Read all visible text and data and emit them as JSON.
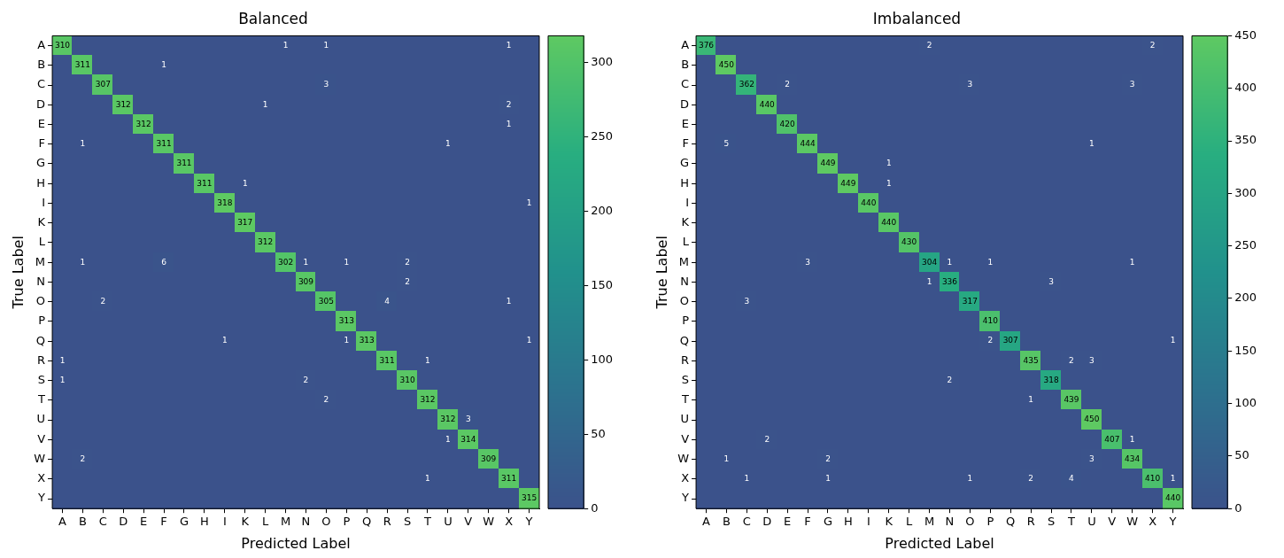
{
  "chart_data": [
    {
      "type": "heatmap",
      "title": "Balanced",
      "xlabel": "Predicted Label",
      "ylabel": "True Label",
      "categories": [
        "A",
        "B",
        "C",
        "D",
        "E",
        "F",
        "G",
        "H",
        "I",
        "K",
        "L",
        "M",
        "N",
        "O",
        "P",
        "Q",
        "R",
        "S",
        "T",
        "U",
        "V",
        "W",
        "X",
        "Y"
      ],
      "y_categories": [
        "A",
        "B",
        "C",
        "D",
        "E",
        "F",
        "G",
        "H",
        "I",
        "K",
        "L",
        "M",
        "N",
        "O",
        "P",
        "Q",
        "R",
        "S",
        "T",
        "U",
        "V",
        "W",
        "X",
        "Y"
      ],
      "cells": [
        [
          310,
          0,
          0,
          0,
          0,
          0,
          0,
          0,
          0,
          0,
          0,
          1,
          0,
          1,
          0,
          0,
          0,
          0,
          0,
          0,
          0,
          0,
          1,
          0
        ],
        [
          0,
          311,
          0,
          0,
          0,
          1,
          0,
          0,
          0,
          0,
          0,
          0,
          0,
          0,
          0,
          0,
          0,
          0,
          0,
          0,
          0,
          0,
          0,
          0
        ],
        [
          0,
          0,
          307,
          0,
          0,
          0,
          0,
          0,
          0,
          0,
          0,
          0,
          0,
          3,
          0,
          0,
          0,
          0,
          0,
          0,
          0,
          0,
          0,
          0
        ],
        [
          0,
          0,
          0,
          312,
          0,
          0,
          0,
          0,
          0,
          0,
          1,
          0,
          0,
          0,
          0,
          0,
          0,
          0,
          0,
          0,
          0,
          0,
          2,
          0
        ],
        [
          0,
          0,
          0,
          0,
          312,
          0,
          0,
          0,
          0,
          0,
          0,
          0,
          0,
          0,
          0,
          0,
          0,
          0,
          0,
          0,
          0,
          0,
          1,
          0
        ],
        [
          0,
          1,
          0,
          0,
          0,
          311,
          0,
          0,
          0,
          0,
          0,
          0,
          0,
          0,
          0,
          0,
          0,
          0,
          0,
          1,
          0,
          0,
          0,
          0
        ],
        [
          0,
          0,
          0,
          0,
          0,
          0,
          311,
          0,
          0,
          0,
          0,
          0,
          0,
          0,
          0,
          0,
          0,
          0,
          0,
          0,
          0,
          0,
          0,
          0
        ],
        [
          0,
          0,
          0,
          0,
          0,
          0,
          0,
          311,
          0,
          1,
          0,
          0,
          0,
          0,
          0,
          0,
          0,
          0,
          0,
          0,
          0,
          0,
          0,
          0
        ],
        [
          0,
          0,
          0,
          0,
          0,
          0,
          0,
          0,
          318,
          0,
          0,
          0,
          0,
          0,
          0,
          0,
          0,
          0,
          0,
          0,
          0,
          0,
          0,
          1
        ],
        [
          0,
          0,
          0,
          0,
          0,
          0,
          0,
          0,
          0,
          317,
          0,
          0,
          0,
          0,
          0,
          0,
          0,
          0,
          0,
          0,
          0,
          0,
          0,
          0
        ],
        [
          0,
          0,
          0,
          0,
          0,
          0,
          0,
          0,
          0,
          0,
          312,
          0,
          0,
          0,
          0,
          0,
          0,
          0,
          0,
          0,
          0,
          0,
          0,
          0
        ],
        [
          0,
          1,
          0,
          0,
          0,
          6,
          0,
          0,
          0,
          0,
          0,
          302,
          1,
          0,
          1,
          0,
          0,
          2,
          0,
          0,
          0,
          0,
          0,
          0
        ],
        [
          0,
          0,
          0,
          0,
          0,
          0,
          0,
          0,
          0,
          0,
          0,
          0,
          309,
          0,
          0,
          0,
          0,
          2,
          0,
          0,
          0,
          0,
          0,
          0
        ],
        [
          0,
          0,
          2,
          0,
          0,
          0,
          0,
          0,
          0,
          0,
          0,
          0,
          0,
          305,
          0,
          0,
          4,
          0,
          0,
          0,
          0,
          0,
          1,
          0
        ],
        [
          0,
          0,
          0,
          0,
          0,
          0,
          0,
          0,
          0,
          0,
          0,
          0,
          0,
          0,
          313,
          0,
          0,
          0,
          0,
          0,
          0,
          0,
          0,
          0
        ],
        [
          0,
          0,
          0,
          0,
          0,
          0,
          0,
          0,
          1,
          0,
          0,
          0,
          0,
          0,
          1,
          313,
          0,
          0,
          0,
          0,
          0,
          0,
          0,
          1
        ],
        [
          1,
          0,
          0,
          0,
          0,
          0,
          0,
          0,
          0,
          0,
          0,
          0,
          0,
          0,
          0,
          0,
          311,
          0,
          1,
          0,
          0,
          0,
          0,
          0
        ],
        [
          1,
          0,
          0,
          0,
          0,
          0,
          0,
          0,
          0,
          0,
          0,
          0,
          2,
          0,
          0,
          0,
          0,
          310,
          0,
          0,
          0,
          0,
          0,
          0
        ],
        [
          0,
          0,
          0,
          0,
          0,
          0,
          0,
          0,
          0,
          0,
          0,
          0,
          0,
          2,
          0,
          0,
          0,
          0,
          312,
          0,
          0,
          0,
          0,
          0
        ],
        [
          0,
          0,
          0,
          0,
          0,
          0,
          0,
          0,
          0,
          0,
          0,
          0,
          0,
          0,
          0,
          0,
          0,
          0,
          0,
          312,
          3,
          0,
          0,
          0
        ],
        [
          0,
          0,
          0,
          0,
          0,
          0,
          0,
          0,
          0,
          0,
          0,
          0,
          0,
          0,
          0,
          0,
          0,
          0,
          0,
          1,
          314,
          0,
          0,
          0
        ],
        [
          0,
          2,
          0,
          0,
          0,
          0,
          0,
          0,
          0,
          0,
          0,
          0,
          0,
          0,
          0,
          0,
          0,
          0,
          0,
          0,
          0,
          309,
          0,
          0
        ],
        [
          0,
          0,
          0,
          0,
          0,
          0,
          0,
          0,
          0,
          0,
          0,
          0,
          0,
          0,
          0,
          0,
          0,
          0,
          1,
          0,
          0,
          0,
          311,
          0
        ],
        [
          0,
          0,
          0,
          0,
          0,
          0,
          0,
          0,
          0,
          0,
          0,
          0,
          0,
          0,
          0,
          0,
          0,
          0,
          0,
          0,
          0,
          0,
          0,
          315
        ]
      ],
      "cell_labels": [
        [
          "310",
          null,
          null,
          null,
          null,
          null,
          null,
          null,
          null,
          null,
          null,
          "1",
          null,
          "1",
          null,
          null,
          null,
          null,
          null,
          null,
          null,
          null,
          "1",
          null
        ],
        [
          null,
          "311",
          null,
          null,
          null,
          "1",
          null,
          null,
          null,
          null,
          null,
          null,
          null,
          null,
          null,
          null,
          null,
          null,
          null,
          null,
          null,
          null,
          null,
          null
        ],
        [
          null,
          null,
          "307",
          null,
          null,
          null,
          null,
          null,
          null,
          null,
          null,
          null,
          null,
          "3",
          null,
          null,
          null,
          null,
          null,
          null,
          null,
          null,
          null,
          null
        ],
        [
          null,
          null,
          null,
          "312",
          null,
          null,
          null,
          null,
          null,
          null,
          "1",
          null,
          null,
          null,
          null,
          null,
          null,
          null,
          null,
          null,
          null,
          null,
          "2",
          null
        ],
        [
          null,
          null,
          null,
          null,
          "312",
          null,
          null,
          null,
          null,
          null,
          null,
          null,
          null,
          null,
          null,
          null,
          null,
          null,
          null,
          null,
          null,
          null,
          "1",
          null
        ],
        [
          null,
          "1",
          null,
          null,
          null,
          "311",
          null,
          null,
          null,
          null,
          null,
          null,
          null,
          null,
          null,
          null,
          null,
          null,
          null,
          "1",
          null,
          null,
          null,
          null
        ],
        [
          null,
          null,
          null,
          null,
          null,
          null,
          "311",
          null,
          null,
          null,
          null,
          null,
          null,
          null,
          null,
          null,
          null,
          null,
          null,
          null,
          null,
          null,
          null,
          null
        ],
        [
          null,
          null,
          null,
          null,
          null,
          null,
          null,
          "311",
          null,
          "1",
          null,
          null,
          null,
          null,
          null,
          null,
          null,
          null,
          null,
          null,
          null,
          null,
          null,
          null
        ],
        [
          null,
          null,
          null,
          null,
          null,
          null,
          null,
          null,
          "318",
          null,
          null,
          null,
          null,
          null,
          null,
          null,
          null,
          null,
          null,
          null,
          null,
          null,
          null,
          "1"
        ],
        [
          null,
          null,
          null,
          null,
          null,
          null,
          null,
          null,
          null,
          "317",
          null,
          null,
          null,
          null,
          null,
          null,
          null,
          null,
          null,
          null,
          null,
          null,
          null,
          null
        ],
        [
          null,
          null,
          null,
          null,
          null,
          null,
          null,
          null,
          null,
          null,
          "312",
          null,
          null,
          null,
          null,
          null,
          null,
          null,
          null,
          null,
          null,
          null,
          null,
          null
        ],
        [
          null,
          "1",
          null,
          null,
          null,
          "6",
          null,
          null,
          null,
          null,
          null,
          "302",
          "1",
          null,
          "1",
          null,
          null,
          "2",
          null,
          null,
          null,
          null,
          null,
          null
        ],
        [
          null,
          null,
          null,
          null,
          null,
          null,
          null,
          null,
          null,
          null,
          null,
          null,
          "309",
          null,
          null,
          null,
          null,
          "2",
          null,
          null,
          null,
          null,
          null,
          null
        ],
        [
          null,
          null,
          "2",
          null,
          null,
          null,
          null,
          null,
          null,
          null,
          null,
          null,
          null,
          "305",
          null,
          null,
          "4",
          null,
          null,
          null,
          null,
          null,
          "1",
          null
        ],
        [
          null,
          null,
          null,
          null,
          null,
          null,
          null,
          null,
          null,
          null,
          null,
          null,
          null,
          null,
          "313",
          null,
          null,
          null,
          null,
          null,
          null,
          null,
          null,
          null
        ],
        [
          null,
          null,
          null,
          null,
          null,
          null,
          null,
          null,
          "1",
          null,
          null,
          null,
          null,
          null,
          "1",
          "313",
          null,
          null,
          null,
          null,
          null,
          null,
          null,
          "1"
        ],
        [
          "1",
          null,
          null,
          null,
          null,
          null,
          null,
          null,
          null,
          null,
          null,
          null,
          null,
          null,
          null,
          null,
          "311",
          null,
          "1",
          null,
          null,
          null,
          null,
          null
        ],
        [
          "1",
          null,
          null,
          null,
          null,
          null,
          null,
          null,
          null,
          null,
          null,
          null,
          "2",
          null,
          null,
          null,
          null,
          "310",
          null,
          null,
          null,
          null,
          null,
          null
        ],
        [
          null,
          null,
          null,
          null,
          null,
          null,
          null,
          null,
          null,
          null,
          null,
          null,
          null,
          "2",
          null,
          null,
          null,
          null,
          "312",
          null,
          null,
          null,
          null,
          null
        ],
        [
          null,
          null,
          null,
          null,
          null,
          null,
          null,
          null,
          null,
          null,
          null,
          null,
          null,
          null,
          null,
          null,
          null,
          null,
          null,
          "312",
          "3",
          null,
          null,
          null
        ],
        [
          null,
          null,
          null,
          null,
          null,
          null,
          null,
          null,
          null,
          null,
          null,
          null,
          null,
          null,
          null,
          null,
          null,
          null,
          null,
          "1",
          "314",
          null,
          null,
          null
        ],
        [
          null,
          "2",
          null,
          null,
          null,
          null,
          null,
          null,
          null,
          null,
          null,
          null,
          null,
          null,
          null,
          null,
          null,
          null,
          null,
          null,
          null,
          "309",
          null,
          null
        ],
        [
          null,
          null,
          null,
          null,
          null,
          null,
          null,
          null,
          null,
          null,
          null,
          null,
          null,
          null,
          null,
          null,
          null,
          null,
          "1",
          null,
          null,
          null,
          "311",
          null
        ],
        [
          null,
          null,
          null,
          null,
          null,
          null,
          null,
          null,
          null,
          null,
          null,
          null,
          null,
          null,
          null,
          null,
          null,
          null,
          null,
          null,
          null,
          null,
          null,
          "315"
        ]
      ],
      "clim": [
        0,
        318
      ],
      "cticks": [
        0,
        50,
        100,
        150,
        200,
        250,
        300
      ]
    },
    {
      "type": "heatmap",
      "title": "Imbalanced",
      "xlabel": "Predicted Label",
      "ylabel": "True Label",
      "categories": [
        "A",
        "B",
        "C",
        "D",
        "E",
        "F",
        "G",
        "H",
        "I",
        "K",
        "L",
        "M",
        "N",
        "O",
        "P",
        "Q",
        "R",
        "S",
        "T",
        "U",
        "V",
        "W",
        "X",
        "Y"
      ],
      "y_categories": [
        "A",
        "B",
        "C",
        "D",
        "E",
        "F",
        "G",
        "H",
        "I",
        "K",
        "L",
        "M",
        "N",
        "O",
        "P",
        "Q",
        "R",
        "S",
        "T",
        "U",
        "V",
        "W",
        "X",
        "Y"
      ],
      "cells": [
        [
          376,
          0,
          0,
          0,
          0,
          0,
          0,
          0,
          0,
          0,
          0,
          2,
          0,
          0,
          0,
          0,
          0,
          0,
          0,
          0,
          0,
          0,
          2,
          0
        ],
        [
          0,
          450,
          0,
          0,
          0,
          0,
          0,
          0,
          0,
          0,
          0,
          0,
          0,
          0,
          0,
          0,
          0,
          0,
          0,
          0,
          0,
          0,
          0,
          0
        ],
        [
          0,
          0,
          362,
          0,
          2,
          0,
          0,
          0,
          0,
          0,
          0,
          0,
          0,
          3,
          0,
          0,
          0,
          0,
          0,
          0,
          0,
          3,
          0,
          0
        ],
        [
          0,
          0,
          0,
          440,
          0,
          0,
          0,
          0,
          0,
          0,
          0,
          0,
          0,
          0,
          0,
          0,
          0,
          0,
          0,
          0,
          0,
          0,
          0,
          0
        ],
        [
          0,
          0,
          0,
          0,
          420,
          0,
          0,
          0,
          0,
          0,
          0,
          0,
          0,
          0,
          0,
          0,
          0,
          0,
          0,
          0,
          0,
          0,
          0,
          0
        ],
        [
          0,
          5,
          0,
          0,
          0,
          444,
          0,
          0,
          0,
          0,
          0,
          0,
          0,
          0,
          0,
          0,
          0,
          0,
          0,
          1,
          0,
          0,
          0,
          0
        ],
        [
          0,
          0,
          0,
          0,
          0,
          0,
          449,
          0,
          0,
          1,
          0,
          0,
          0,
          0,
          0,
          0,
          0,
          0,
          0,
          0,
          0,
          0,
          0,
          0
        ],
        [
          0,
          0,
          0,
          0,
          0,
          0,
          0,
          449,
          0,
          1,
          0,
          0,
          0,
          0,
          0,
          0,
          0,
          0,
          0,
          0,
          0,
          0,
          0,
          0
        ],
        [
          0,
          0,
          0,
          0,
          0,
          0,
          0,
          0,
          440,
          0,
          0,
          0,
          0,
          0,
          0,
          0,
          0,
          0,
          0,
          0,
          0,
          0,
          0,
          0
        ],
        [
          0,
          0,
          0,
          0,
          0,
          0,
          0,
          0,
          0,
          440,
          0,
          0,
          0,
          0,
          0,
          0,
          0,
          0,
          0,
          0,
          0,
          0,
          0,
          0
        ],
        [
          0,
          0,
          0,
          0,
          0,
          0,
          0,
          0,
          0,
          0,
          430,
          0,
          0,
          0,
          0,
          0,
          0,
          0,
          0,
          0,
          0,
          0,
          0,
          0
        ],
        [
          0,
          0,
          0,
          0,
          0,
          3,
          0,
          0,
          0,
          0,
          0,
          304,
          1,
          0,
          1,
          0,
          0,
          0,
          0,
          0,
          0,
          1,
          0,
          0
        ],
        [
          0,
          0,
          0,
          0,
          0,
          0,
          0,
          0,
          0,
          0,
          0,
          1,
          336,
          0,
          0,
          0,
          0,
          3,
          0,
          0,
          0,
          0,
          0,
          0
        ],
        [
          0,
          0,
          3,
          0,
          0,
          0,
          0,
          0,
          0,
          0,
          0,
          0,
          0,
          317,
          0,
          0,
          0,
          0,
          0,
          0,
          0,
          0,
          0,
          0
        ],
        [
          0,
          0,
          0,
          0,
          0,
          0,
          0,
          0,
          0,
          0,
          0,
          0,
          0,
          0,
          410,
          0,
          0,
          0,
          0,
          0,
          0,
          0,
          0,
          0
        ],
        [
          0,
          0,
          0,
          0,
          0,
          0,
          0,
          0,
          0,
          0,
          0,
          0,
          0,
          0,
          2,
          307,
          0,
          0,
          0,
          0,
          0,
          0,
          0,
          1
        ],
        [
          0,
          0,
          0,
          0,
          0,
          0,
          0,
          0,
          0,
          0,
          0,
          0,
          0,
          0,
          0,
          0,
          435,
          0,
          2,
          3,
          0,
          0,
          0,
          0
        ],
        [
          0,
          0,
          0,
          0,
          0,
          0,
          0,
          0,
          0,
          0,
          0,
          0,
          2,
          0,
          0,
          0,
          0,
          318,
          0,
          0,
          0,
          0,
          0,
          0
        ],
        [
          0,
          0,
          0,
          0,
          0,
          0,
          0,
          0,
          0,
          0,
          0,
          0,
          0,
          0,
          0,
          0,
          1,
          0,
          439,
          0,
          0,
          0,
          0,
          0
        ],
        [
          0,
          0,
          0,
          0,
          0,
          0,
          0,
          0,
          0,
          0,
          0,
          0,
          0,
          0,
          0,
          0,
          0,
          0,
          0,
          450,
          0,
          0,
          0,
          0
        ],
        [
          0,
          0,
          0,
          2,
          0,
          0,
          0,
          0,
          0,
          0,
          0,
          0,
          0,
          0,
          0,
          0,
          0,
          0,
          0,
          0,
          407,
          1,
          0,
          0
        ],
        [
          0,
          1,
          0,
          0,
          0,
          0,
          2,
          0,
          0,
          0,
          0,
          0,
          0,
          0,
          0,
          0,
          0,
          0,
          0,
          3,
          0,
          434,
          0,
          0
        ],
        [
          0,
          0,
          1,
          0,
          0,
          0,
          1,
          0,
          0,
          0,
          0,
          0,
          0,
          1,
          0,
          0,
          2,
          0,
          4,
          0,
          0,
          0,
          410,
          1
        ],
        [
          0,
          0,
          0,
          0,
          0,
          0,
          0,
          0,
          0,
          0,
          0,
          0,
          0,
          0,
          0,
          0,
          0,
          0,
          0,
          0,
          0,
          0,
          0,
          440
        ]
      ],
      "cell_labels": [
        [
          "376",
          null,
          null,
          null,
          null,
          null,
          null,
          null,
          null,
          null,
          null,
          "2",
          null,
          null,
          null,
          null,
          null,
          null,
          null,
          null,
          null,
          null,
          "2",
          null
        ],
        [
          null,
          "450",
          null,
          null,
          null,
          null,
          null,
          null,
          null,
          null,
          null,
          null,
          null,
          null,
          null,
          null,
          null,
          null,
          null,
          null,
          null,
          null,
          null,
          null
        ],
        [
          null,
          null,
          "362",
          null,
          "2",
          null,
          null,
          null,
          null,
          null,
          null,
          null,
          null,
          "3",
          null,
          null,
          null,
          null,
          null,
          null,
          null,
          "3",
          null,
          null
        ],
        [
          null,
          null,
          null,
          "440",
          null,
          null,
          null,
          null,
          null,
          null,
          null,
          null,
          null,
          null,
          null,
          null,
          null,
          null,
          null,
          null,
          null,
          null,
          null,
          null
        ],
        [
          null,
          null,
          null,
          null,
          "420",
          null,
          null,
          null,
          null,
          null,
          null,
          null,
          null,
          null,
          null,
          null,
          null,
          null,
          null,
          null,
          null,
          null,
          null,
          null
        ],
        [
          null,
          "5",
          null,
          null,
          null,
          "444",
          null,
          null,
          null,
          null,
          null,
          null,
          null,
          null,
          null,
          null,
          null,
          null,
          null,
          "1",
          null,
          null,
          null,
          null
        ],
        [
          null,
          null,
          null,
          null,
          null,
          null,
          "449",
          null,
          null,
          "1",
          null,
          null,
          null,
          null,
          null,
          null,
          null,
          null,
          null,
          null,
          null,
          null,
          null,
          null
        ],
        [
          null,
          null,
          null,
          null,
          null,
          null,
          null,
          "449",
          null,
          "1",
          null,
          null,
          null,
          null,
          null,
          null,
          null,
          null,
          null,
          null,
          null,
          null,
          null,
          null
        ],
        [
          null,
          null,
          null,
          null,
          null,
          null,
          null,
          null,
          "440",
          null,
          null,
          null,
          null,
          null,
          null,
          null,
          null,
          null,
          null,
          null,
          null,
          null,
          null,
          null
        ],
        [
          null,
          null,
          null,
          null,
          null,
          null,
          null,
          null,
          null,
          "440",
          null,
          null,
          null,
          null,
          null,
          null,
          null,
          null,
          null,
          null,
          null,
          null,
          null,
          null
        ],
        [
          null,
          null,
          null,
          null,
          null,
          null,
          null,
          null,
          null,
          null,
          "430",
          null,
          null,
          null,
          null,
          null,
          null,
          null,
          null,
          null,
          null,
          null,
          null,
          null
        ],
        [
          null,
          null,
          null,
          null,
          null,
          "3",
          null,
          null,
          null,
          null,
          null,
          "304",
          "1",
          null,
          "1",
          null,
          null,
          null,
          null,
          null,
          null,
          "1",
          null,
          null
        ],
        [
          null,
          null,
          null,
          null,
          null,
          null,
          null,
          null,
          null,
          null,
          null,
          "1",
          "336",
          null,
          null,
          null,
          null,
          "3",
          null,
          null,
          null,
          null,
          null,
          null
        ],
        [
          null,
          null,
          "3",
          null,
          null,
          null,
          null,
          null,
          null,
          null,
          null,
          null,
          null,
          "317",
          null,
          null,
          null,
          null,
          null,
          null,
          null,
          null,
          null,
          null
        ],
        [
          null,
          null,
          null,
          null,
          null,
          null,
          null,
          null,
          null,
          null,
          null,
          null,
          null,
          null,
          "410",
          null,
          null,
          null,
          null,
          null,
          null,
          null,
          null,
          null
        ],
        [
          null,
          null,
          null,
          null,
          null,
          null,
          null,
          null,
          null,
          null,
          null,
          null,
          null,
          null,
          "2",
          "307",
          null,
          null,
          null,
          null,
          null,
          null,
          null,
          "1"
        ],
        [
          null,
          null,
          null,
          null,
          null,
          null,
          null,
          null,
          null,
          null,
          null,
          null,
          null,
          null,
          null,
          null,
          "435",
          null,
          "2",
          "3",
          null,
          null,
          null,
          null
        ],
        [
          null,
          null,
          null,
          null,
          null,
          null,
          null,
          null,
          null,
          null,
          null,
          null,
          "2",
          null,
          null,
          null,
          null,
          "318",
          null,
          null,
          null,
          null,
          null,
          null
        ],
        [
          null,
          null,
          null,
          null,
          null,
          null,
          null,
          null,
          null,
          null,
          null,
          null,
          null,
          null,
          null,
          null,
          "1",
          null,
          "439",
          null,
          null,
          null,
          null,
          null
        ],
        [
          null,
          null,
          null,
          null,
          null,
          null,
          null,
          null,
          null,
          null,
          null,
          null,
          null,
          null,
          null,
          null,
          null,
          null,
          null,
          "450",
          null,
          null,
          null,
          null
        ],
        [
          null,
          null,
          null,
          "2",
          null,
          null,
          null,
          null,
          null,
          null,
          null,
          null,
          null,
          null,
          null,
          null,
          null,
          null,
          null,
          null,
          "407",
          "1",
          null,
          null
        ],
        [
          null,
          "1",
          null,
          null,
          null,
          null,
          "2",
          null,
          null,
          null,
          null,
          null,
          null,
          null,
          null,
          null,
          null,
          null,
          null,
          "3",
          null,
          "434",
          null,
          null
        ],
        [
          null,
          null,
          "1",
          null,
          null,
          null,
          "1",
          null,
          null,
          null,
          null,
          null,
          null,
          "1",
          null,
          null,
          "2",
          null,
          "4",
          null,
          null,
          null,
          "410",
          "1"
        ],
        [
          null,
          null,
          null,
          null,
          null,
          null,
          null,
          null,
          null,
          null,
          null,
          null,
          null,
          null,
          null,
          null,
          null,
          null,
          null,
          null,
          null,
          null,
          null,
          "440"
        ]
      ],
      "clim": [
        0,
        450
      ],
      "cticks": [
        0,
        50,
        100,
        150,
        200,
        250,
        300,
        350,
        400,
        450
      ]
    }
  ]
}
